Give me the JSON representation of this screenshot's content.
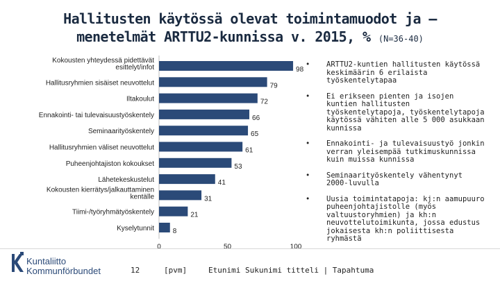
{
  "title": {
    "line1": "Hallitusten käytössä olevat toimintamuodot ja –",
    "line2": "menetelmät ARTTU2-kunnissa v. 2015, %",
    "sample": "(N=36-40)"
  },
  "chart_data": {
    "type": "bar",
    "orientation": "horizontal",
    "title": "Hallitusten käytössä olevat toimintamuodot ja – menetelmät ARTTU2-kunnissa v. 2015, %",
    "categories": [
      "Kokousten yhteydessä pidettävät esittelyt/infot",
      "Hallitusryhmien sisäiset neuvottelut",
      "Iltakoulut",
      "Ennakointi- tai tulevaisuustyöskentely",
      "Seminaarityöskentely",
      "Hallitusryhmien väliset neuvottelut",
      "Puheenjohtajiston kokoukset",
      "Lähetekeskustelut",
      "Kokousten kierrätys/jalkauttaminen kentälle",
      "Tiimi-/työryhmätyöskentely",
      "Kyselytunnit"
    ],
    "values": [
      98,
      79,
      72,
      66,
      65,
      61,
      53,
      41,
      31,
      21,
      8
    ],
    "xlim": [
      0,
      100
    ],
    "xticks": [
      "0",
      "50",
      "100"
    ],
    "bar_color": "#2b4a78"
  },
  "bullets": [
    "ARTTU2-kuntien hallitusten käytössä keskimäärin 6 erilaista työskentelytapaa",
    "Ei erikseen pienten ja isojen kuntien hallitusten työskentelytapoja, työskentelytapoja käytössä vähiten alle 5 000 asukkaan kunnissa",
    "Ennakointi- ja tulevaisuustyö jonkin verran yleisempää tutkimuskunnissa kuin muissa kunnissa",
    "Seminaarityöskentely vähentynyt 2000-luvulla",
    "Uusia toimintatapoja: kj:n aamupuuro puheenjohtajistolle (myös valtuustoryhmien) ja kh:n neuvottelutoimikunta, jossa edustus jokaisesta kh:n poliittisesta ryhmästä"
  ],
  "bullet_symbol": "•",
  "footer": {
    "logo_line1": "Kuntaliitto",
    "logo_line2": "Kommunförbundet",
    "page_number": "12",
    "date": "[pvm]",
    "author": "Etunimi Sukunimi titteli | Tapahtuma"
  },
  "colors": {
    "bar": "#2b4a78",
    "title": "#1a2a40",
    "logo": "#2b4a78"
  }
}
